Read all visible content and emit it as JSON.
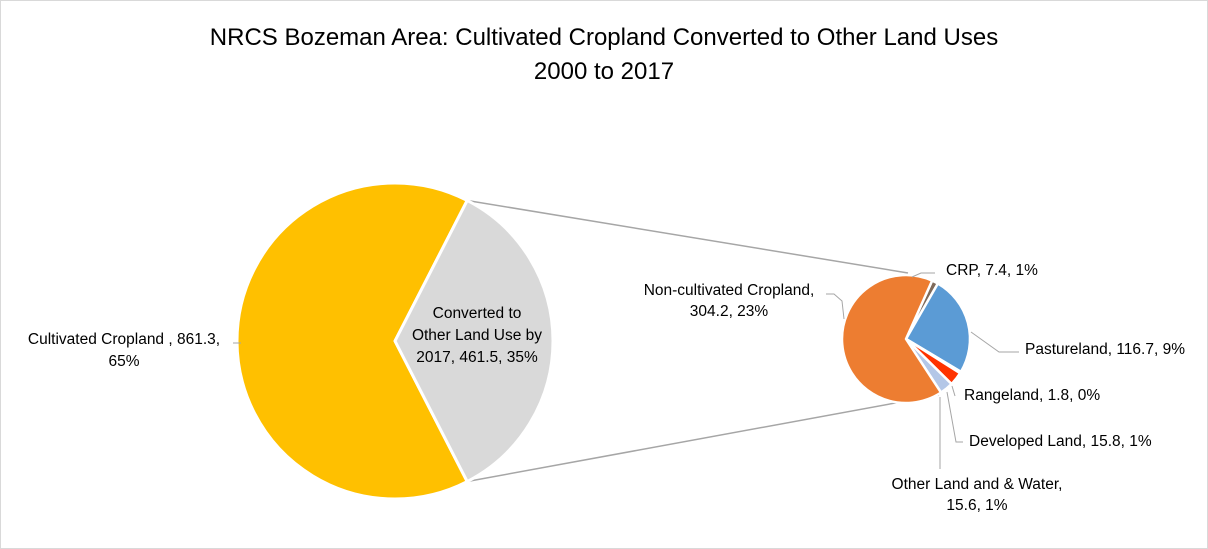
{
  "chart_data": {
    "type": "pie",
    "variant": "pie-of-pie",
    "title": [
      "NRCS Bozeman Area: Cultivated Cropland Converted to Other Land Uses",
      "2000 to 2017"
    ],
    "units": "",
    "main_pie": {
      "slices": [
        {
          "name": "Cultivated Cropland",
          "value": 861.3,
          "percent": "65%",
          "label_lines": [
            "Cultivated Cropland , 861.3,",
            "65%"
          ],
          "color": "#FFC000"
        },
        {
          "name": "Converted to Other Land Use by 2017",
          "value": 461.5,
          "percent": "35%",
          "label_lines": [
            "Converted to",
            "Other Land Use by",
            "2017, 461.5, 35%"
          ],
          "color": "#D9D9D9"
        }
      ]
    },
    "secondary_pie": {
      "breakdown_of": "Converted to Other Land Use by 2017",
      "slices": [
        {
          "name": "CRP",
          "value": 7.4,
          "percent": "1%",
          "label_lines": [
            "CRP, 7.4, 1%"
          ],
          "color": "#7F6A5A"
        },
        {
          "name": "Pastureland",
          "value": 116.7,
          "percent": "9%",
          "label_lines": [
            "Pastureland, 116.7, 9%"
          ],
          "color": "#5B9BD5"
        },
        {
          "name": "Rangeland",
          "value": 1.8,
          "percent": "0%",
          "label_lines": [
            "Rangeland, 1.8, 0%"
          ],
          "color": "#C00000"
        },
        {
          "name": "Developed Land",
          "value": 15.8,
          "percent": "1%",
          "label_lines": [
            "Developed Land, 15.8, 1%"
          ],
          "color": "#FF3300"
        },
        {
          "name": "Other Land and & Water",
          "value": 15.6,
          "percent": "1%",
          "label_lines": [
            "Other Land and & Water,",
            "15.6, 1%"
          ],
          "color": "#B4C7E7"
        },
        {
          "name": "Non-cultivated Cropland",
          "value": 304.2,
          "percent": "23%",
          "label_lines": [
            "Non-cultivated Cropland,",
            "304.2, 23%"
          ],
          "color": "#ED7D31"
        }
      ]
    },
    "legend": "none",
    "grid": false
  }
}
